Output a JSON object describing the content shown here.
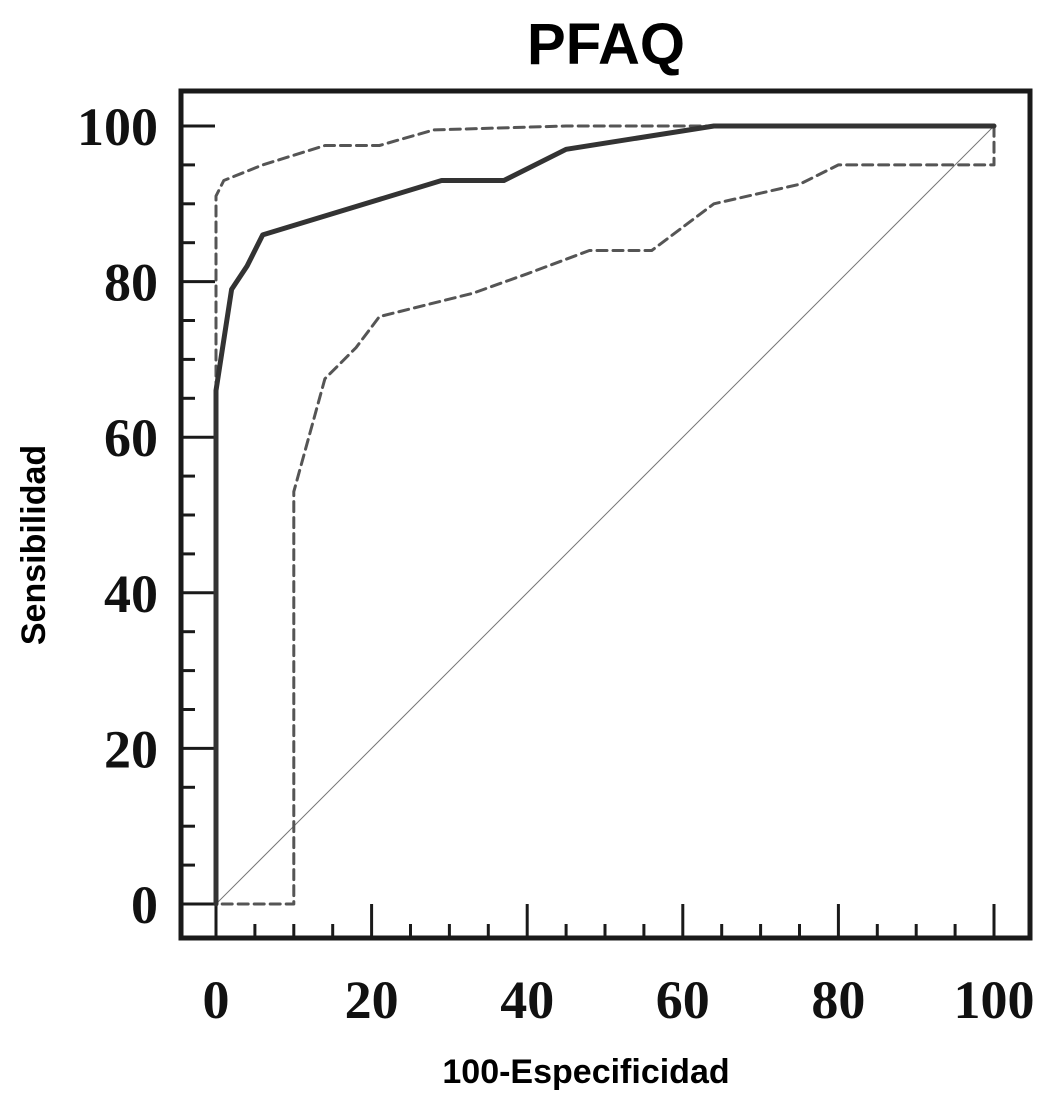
{
  "chart_data": {
    "type": "line",
    "title": "PFAQ",
    "xlabel": "100-Especificidad",
    "ylabel": "Sensibilidad",
    "xlim": [
      0,
      100
    ],
    "ylim": [
      0,
      100
    ],
    "x_ticks": [
      "0",
      "20",
      "40",
      "60",
      "80",
      "100"
    ],
    "y_ticks": [
      "0",
      "20",
      "40",
      "60",
      "80",
      "100"
    ],
    "grid": false,
    "legend": "none",
    "series": [
      {
        "style": "solid-thick",
        "color": "#333333",
        "points": [
          [
            0,
            0
          ],
          [
            0,
            66
          ],
          [
            2,
            79
          ],
          [
            4,
            82
          ],
          [
            6,
            86
          ],
          [
            29,
            93
          ],
          [
            37,
            93
          ],
          [
            45,
            97
          ],
          [
            64,
            100
          ],
          [
            100,
            100
          ]
        ]
      },
      {
        "style": "dashed",
        "color": "#555555",
        "points": [
          [
            0,
            0
          ],
          [
            0,
            91
          ],
          [
            1,
            93
          ],
          [
            6,
            95
          ],
          [
            14,
            97.5
          ],
          [
            21,
            97.5
          ],
          [
            28,
            99.5
          ],
          [
            45,
            100
          ],
          [
            100,
            100
          ],
          [
            100,
            95
          ],
          [
            80,
            95
          ],
          [
            75,
            92.5
          ],
          [
            64,
            90
          ],
          [
            56,
            84
          ],
          [
            48,
            84
          ],
          [
            40,
            81
          ],
          [
            33,
            78.5
          ],
          [
            21,
            75.5
          ],
          [
            18,
            71.5
          ],
          [
            14,
            67.5
          ],
          [
            10,
            53
          ],
          [
            10,
            0
          ],
          [
            0,
            0
          ]
        ]
      },
      {
        "style": "diagonal-reference",
        "color": "#777777",
        "points": [
          [
            0,
            0
          ],
          [
            100,
            100
          ]
        ]
      }
    ]
  }
}
